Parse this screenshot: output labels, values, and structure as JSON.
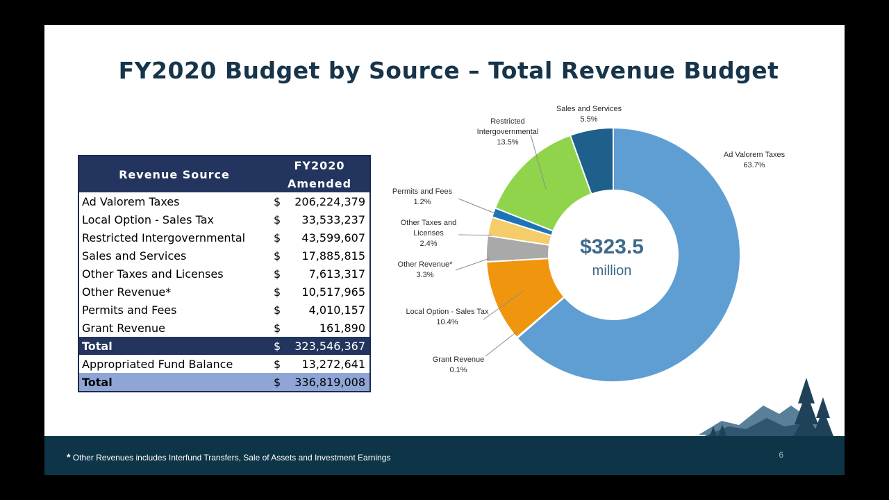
{
  "title": "FY2020 Budget by Source – Total Revenue Budget",
  "table": {
    "header_source": "Revenue Source",
    "header_col1": "FY2020",
    "header_col2": "Amended",
    "rows": [
      {
        "source": "Ad Valorem Taxes",
        "dollar": "$",
        "amount": "206,224,379"
      },
      {
        "source": "Local Option - Sales Tax",
        "dollar": "$",
        "amount": "33,533,237"
      },
      {
        "source": "Restricted Intergovernmental",
        "dollar": "$",
        "amount": "43,599,607"
      },
      {
        "source": "Sales and Services",
        "dollar": "$",
        "amount": "17,885,815"
      },
      {
        "source": "Other Taxes and Licenses",
        "dollar": "$",
        "amount": "7,613,317"
      },
      {
        "source": "Other Revenue*",
        "dollar": "$",
        "amount": "10,517,965"
      },
      {
        "source": "Permits and Fees",
        "dollar": "$",
        "amount": "4,010,157"
      },
      {
        "source": "Grant Revenue",
        "dollar": "$",
        "amount": "161,890"
      }
    ],
    "total1": {
      "label": "Total",
      "dollar": "$",
      "amount": "323,546,367"
    },
    "fund_balance": {
      "label": "Appropriated Fund Balance",
      "dollar": "$",
      "amount": "13,272,641"
    },
    "total2": {
      "label": "Total",
      "dollar": "$",
      "amount": "336,819,008"
    }
  },
  "chart_data": {
    "type": "pie",
    "center_value": "$323.5",
    "center_unit": "million",
    "slices": [
      {
        "name": "Ad Valorem Taxes",
        "pct": 63.7,
        "pct_label": "63.7%",
        "color": "#5f9ed2"
      },
      {
        "name": "Grant Revenue",
        "pct": 0.1,
        "pct_label": "0.1%",
        "color": "#4a7a2c"
      },
      {
        "name": "Local Option - Sales Tax",
        "pct": 10.4,
        "pct_label": "10.4%",
        "color": "#f0960e"
      },
      {
        "name": "Other Revenue*",
        "pct": 3.3,
        "pct_label": "3.3%",
        "color": "#a9a9a9"
      },
      {
        "name": "Other Taxes and Licenses",
        "pct": 2.4,
        "pct_label": "2.4%",
        "color": "#f5cc6a"
      },
      {
        "name": "Permits and Fees",
        "pct": 1.2,
        "pct_label": "1.2%",
        "color": "#1e73b8"
      },
      {
        "name": "Restricted Intergovernmental",
        "pct": 13.5,
        "pct_label": "13.5%",
        "color": "#8fd44a"
      },
      {
        "name": "Sales and Services",
        "pct": 5.5,
        "pct_label": "5.5%",
        "color": "#1f5f8b"
      }
    ]
  },
  "footer": {
    "asterisk": "*",
    "note": "Other Revenues includes Interfund Transfers, Sale of Assets and Investment Earnings",
    "page_number": "6"
  },
  "colors": {
    "title": "#16344a",
    "table_header": "#23345e",
    "total2": "#8ea5d6",
    "footer": "#0d3547"
  }
}
